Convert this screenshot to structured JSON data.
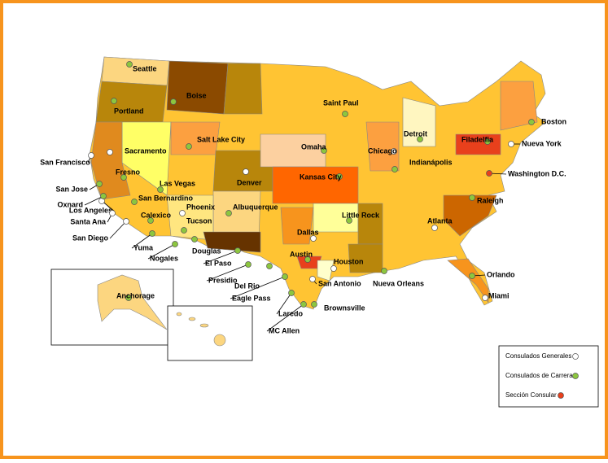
{
  "offices": [
    {
      "label": "Consulados Generales",
      "color": "#ffffff",
      "cities": [
        "San Francisco",
        "Sacramento",
        "Los Angeles",
        "Santa Ana",
        "San Diego",
        "Phoenix",
        "Denver",
        "Dallas",
        "Houston",
        "San Antonio",
        "Chicago",
        "Atlanta",
        "Miami",
        "Nueva York"
      ]
    },
    {
      "label": "Consulados de Carrera",
      "color": "#8cc63f",
      "cities": [
        "Seattle",
        "Portland",
        "Boise",
        "Salt Lake City",
        "Fresno",
        "Las Vegas",
        "San Jose",
        "Oxnard",
        "San Bernardino",
        "Calexico",
        "Yuma",
        "Nogales",
        "Tucson",
        "Douglas",
        "Albuquerque",
        "El Paso",
        "Presidio",
        "Del Rio",
        "Eagle Pass",
        "Laredo",
        "MC  Allen",
        "Brownsville",
        "Austin",
        "Kansas City",
        "Omaha",
        "Saint Paul",
        "Detroit",
        "Indianápolis",
        "Little Rock",
        "Nueva Orleans",
        "Orlando",
        "Raleigh",
        "Filadelfia",
        "Boston",
        "Anchorage"
      ]
    },
    {
      "label": "Sección Consular",
      "color": "#e8401c",
      "cities": [
        "Washington D.C."
      ]
    }
  ]
}
